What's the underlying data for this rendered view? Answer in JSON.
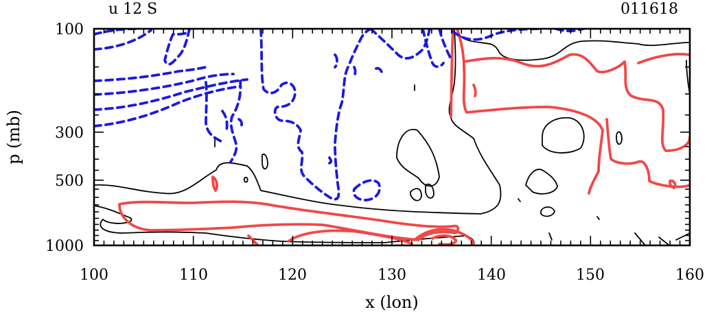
{
  "chart_data": {
    "type": "contour",
    "title_left": "u 12 S",
    "title_right": "011618",
    "xlabel": "x (lon)",
    "ylabel": "p (mb)",
    "xlim": [
      100,
      160
    ],
    "ylim": [
      100,
      1000
    ],
    "yscale": "log",
    "x_ticks": [
      100,
      110,
      120,
      130,
      140,
      150,
      160
    ],
    "x_tick_labels": [
      "100",
      "110",
      "120",
      "130",
      "140",
      "150",
      "160"
    ],
    "y_ticks": [
      100,
      300,
      500,
      1000
    ],
    "y_tick_labels": [
      "100",
      "300",
      "500",
      "1000"
    ],
    "series": [
      {
        "name": "positive",
        "color": "#f04848",
        "dash": "solid"
      },
      {
        "name": "zero",
        "color": "#000000",
        "dash": "solid"
      },
      {
        "name": "negative",
        "color": "#1a1ae0",
        "dash": "dashed"
      }
    ]
  }
}
